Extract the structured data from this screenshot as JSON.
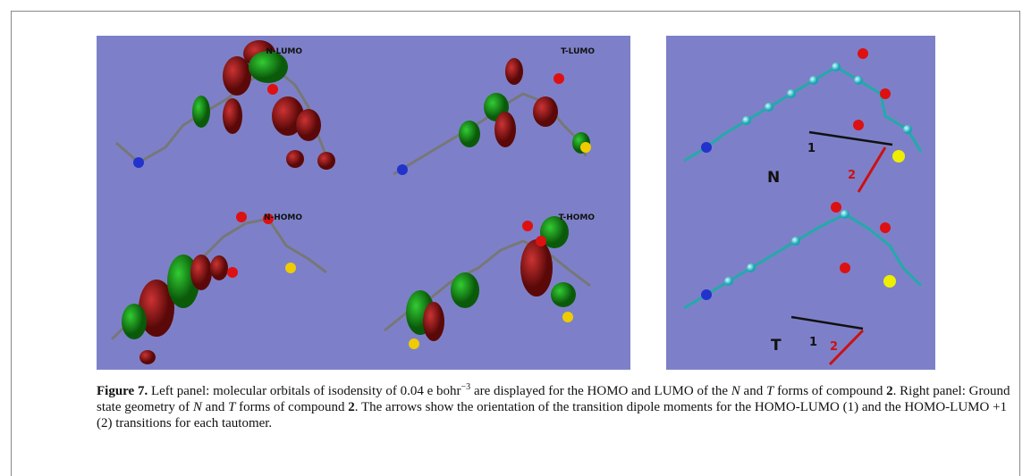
{
  "figure": {
    "panels": [
      {
        "label": "N-LUMO"
      },
      {
        "label": "T-LUMO"
      },
      {
        "label": "N-HOMO"
      },
      {
        "label": "T-HOMO"
      }
    ],
    "geometry": {
      "tautomers": [
        "N",
        "T"
      ],
      "arrows": [
        {
          "label": "1"
        },
        {
          "label": "2"
        }
      ]
    },
    "caption": {
      "label": "Figure 7.",
      "segments": [
        {
          "text": " Left panel: molecular orbitals of isodensity of 0.04 e bohr"
        },
        {
          "text": "−3",
          "style": "sup"
        },
        {
          "text": " are displayed for the HOMO and LUMO of the "
        },
        {
          "text": "N",
          "style": "italic"
        },
        {
          "text": " and "
        },
        {
          "text": "T",
          "style": "italic"
        },
        {
          "text": " forms of compound "
        },
        {
          "text": "2",
          "style": "bold"
        },
        {
          "text": ". Right panel: Ground state geometry of "
        },
        {
          "text": "N",
          "style": "italic"
        },
        {
          "text": " and "
        },
        {
          "text": "T",
          "style": "italic"
        },
        {
          "text": " forms of compound "
        },
        {
          "text": "2",
          "style": "bold"
        },
        {
          "text": ". The arrows show the orientation of the transition dipole moments for the HOMO-LUMO (1) and the HOMO-LUMO +1 (2) transitions for each tautomer."
        }
      ]
    }
  }
}
